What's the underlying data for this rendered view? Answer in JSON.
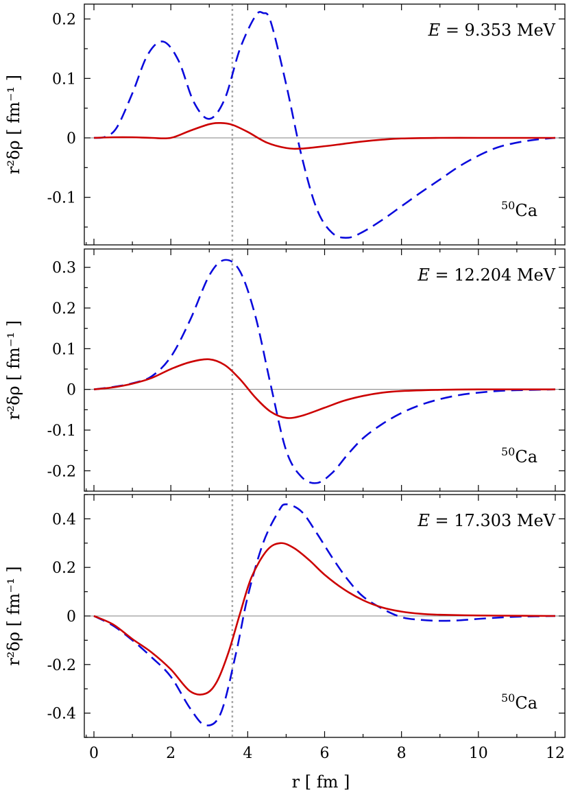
{
  "chart_data": [
    {
      "type": "line",
      "energy_label": "E",
      "energy_value": "= 9.353 MeV",
      "nucleus_mass": "50",
      "nucleus_symbol": "Ca",
      "ylabel": "r²δρ [ fm⁻¹ ]",
      "xlim": [
        -0.25,
        12.25
      ],
      "ylim": [
        -0.18,
        0.225
      ],
      "yticks": [
        -0.1,
        0,
        0.1,
        0.2
      ],
      "ytick_labels": [
        "-0.1",
        "0",
        "0.1",
        "0.2"
      ],
      "vline_x": 3.6,
      "series": [
        {
          "name": "dashed-blue",
          "color": "#0a0adc",
          "style": "dashed",
          "x": [
            0,
            0.3,
            0.6,
            1.0,
            1.4,
            1.8,
            2.2,
            2.6,
            3.0,
            3.4,
            3.8,
            4.2,
            4.4,
            4.6,
            5.0,
            5.4,
            5.8,
            6.2,
            6.6,
            7.0,
            7.5,
            8.0,
            8.5,
            9.0,
            9.5,
            10.0,
            10.5,
            11.0,
            11.5,
            12.0
          ],
          "y": [
            0,
            0.002,
            0.018,
            0.075,
            0.14,
            0.162,
            0.13,
            0.06,
            0.032,
            0.065,
            0.15,
            0.205,
            0.21,
            0.195,
            0.09,
            -0.03,
            -0.12,
            -0.16,
            -0.168,
            -0.158,
            -0.138,
            -0.115,
            -0.092,
            -0.07,
            -0.048,
            -0.03,
            -0.016,
            -0.008,
            -0.003,
            0
          ]
        },
        {
          "name": "solid-red",
          "color": "#cc0000",
          "style": "solid",
          "x": [
            0,
            0.5,
            1.0,
            1.5,
            2.0,
            2.5,
            3.0,
            3.3,
            3.6,
            4.0,
            4.5,
            5.0,
            5.4,
            6.0,
            6.5,
            7.0,
            7.5,
            8.0,
            9.0,
            10.0,
            11.0,
            12.0
          ],
          "y": [
            0,
            0.001,
            0.001,
            0.0,
            0.0,
            0.012,
            0.023,
            0.025,
            0.022,
            0.01,
            -0.008,
            -0.017,
            -0.018,
            -0.014,
            -0.01,
            -0.006,
            -0.003,
            -0.001,
            0,
            0,
            0,
            0
          ]
        }
      ]
    },
    {
      "type": "line",
      "energy_label": "E",
      "energy_value": "= 12.204 MeV",
      "nucleus_mass": "50",
      "nucleus_symbol": "Ca",
      "ylabel": "r²δρ [ fm⁻¹ ]",
      "xlim": [
        -0.25,
        12.25
      ],
      "ylim": [
        -0.25,
        0.345
      ],
      "yticks": [
        -0.2,
        -0.1,
        0,
        0.1,
        0.2,
        0.3
      ],
      "ytick_labels": [
        "-0.2",
        "-0.1",
        "0",
        "0.1",
        "0.2",
        "0.3"
      ],
      "vline_x": 3.6,
      "series": [
        {
          "name": "dashed-blue",
          "color": "#0a0adc",
          "style": "dashed",
          "x": [
            0,
            0.5,
            1.0,
            1.5,
            2.0,
            2.5,
            3.0,
            3.4,
            3.8,
            4.2,
            4.6,
            5.0,
            5.4,
            5.8,
            6.2,
            6.6,
            7.0,
            7.5,
            8.0,
            8.5,
            9.0,
            9.5,
            10.0,
            10.5,
            11.0,
            12.0
          ],
          "y": [
            0,
            0.006,
            0.015,
            0.032,
            0.08,
            0.17,
            0.28,
            0.318,
            0.29,
            0.18,
            0.01,
            -0.15,
            -0.215,
            -0.23,
            -0.205,
            -0.16,
            -0.12,
            -0.085,
            -0.058,
            -0.038,
            -0.024,
            -0.014,
            -0.008,
            -0.004,
            -0.002,
            0
          ]
        },
        {
          "name": "solid-red",
          "color": "#cc0000",
          "style": "solid",
          "x": [
            0,
            0.5,
            1.0,
            1.5,
            2.0,
            2.5,
            3.0,
            3.4,
            3.8,
            4.2,
            4.6,
            5.0,
            5.4,
            6.0,
            6.5,
            7.0,
            7.5,
            8.0,
            9.0,
            10.0,
            11.0,
            12.0
          ],
          "y": [
            0,
            0.005,
            0.014,
            0.028,
            0.05,
            0.067,
            0.074,
            0.06,
            0.025,
            -0.02,
            -0.055,
            -0.07,
            -0.065,
            -0.045,
            -0.028,
            -0.016,
            -0.008,
            -0.004,
            -0.001,
            0,
            0,
            0
          ]
        }
      ]
    },
    {
      "type": "line",
      "energy_label": "E",
      "energy_value": "= 17.303 MeV",
      "nucleus_mass": "50",
      "nucleus_symbol": "Ca",
      "ylabel": "r²δρ [ fm⁻¹ ]",
      "xlabel": "r [ fm ]",
      "xlim": [
        -0.25,
        12.25
      ],
      "ylim": [
        -0.5,
        0.5
      ],
      "xticks": [
        0,
        2,
        4,
        6,
        8,
        10,
        12
      ],
      "xtick_labels": [
        "0",
        "2",
        "4",
        "6",
        "8",
        "10",
        "12"
      ],
      "yticks": [
        -0.4,
        -0.2,
        0,
        0.2,
        0.4
      ],
      "ytick_labels": [
        "-0.4",
        "-0.2",
        "0",
        "0.2",
        "0.4"
      ],
      "vline_x": 3.6,
      "series": [
        {
          "name": "dashed-blue",
          "color": "#0a0adc",
          "style": "dashed",
          "x": [
            0,
            0.5,
            1.0,
            1.5,
            2.0,
            2.5,
            2.9,
            3.3,
            3.7,
            4.0,
            4.4,
            4.8,
            5.0,
            5.4,
            5.8,
            6.2,
            6.6,
            7.0,
            7.5,
            8.0,
            8.5,
            9.0,
            9.5,
            10.0,
            10.5,
            11.0,
            12.0
          ],
          "y": [
            0,
            -0.04,
            -0.1,
            -0.17,
            -0.25,
            -0.38,
            -0.45,
            -0.4,
            -0.15,
            0.08,
            0.3,
            0.43,
            0.46,
            0.43,
            0.34,
            0.24,
            0.15,
            0.08,
            0.03,
            -0.005,
            -0.016,
            -0.02,
            -0.018,
            -0.012,
            -0.007,
            -0.003,
            0
          ]
        },
        {
          "name": "solid-red",
          "color": "#cc0000",
          "style": "solid",
          "x": [
            0,
            0.5,
            1.0,
            1.5,
            2.0,
            2.5,
            2.9,
            3.2,
            3.5,
            3.8,
            4.1,
            4.5,
            4.85,
            5.2,
            5.6,
            6.0,
            6.5,
            7.0,
            7.5,
            8.0,
            8.5,
            9.0,
            10.0,
            11.0,
            12.0
          ],
          "y": [
            0,
            -0.035,
            -0.095,
            -0.15,
            -0.22,
            -0.31,
            -0.32,
            -0.27,
            -0.15,
            0.01,
            0.16,
            0.27,
            0.3,
            0.28,
            0.23,
            0.17,
            0.11,
            0.065,
            0.035,
            0.018,
            0.009,
            0.005,
            0.002,
            0.001,
            0
          ]
        }
      ]
    }
  ]
}
